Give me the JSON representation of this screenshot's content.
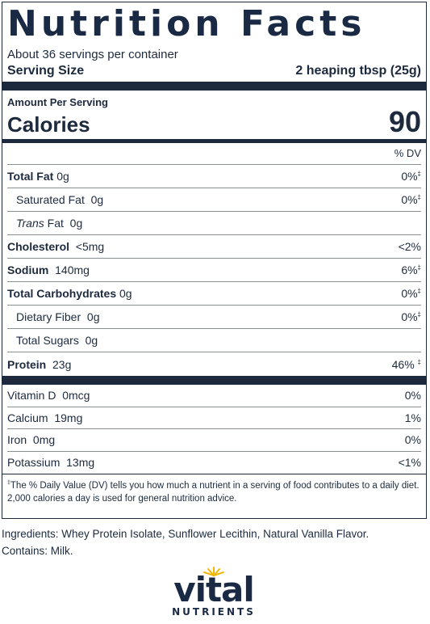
{
  "panel": {
    "title": "Nutrition Facts",
    "servings_per_container": "About 36 servings per container",
    "serving_size_label": "Serving Size",
    "serving_size_value": "2 heaping tbsp (25g)",
    "amount_per_serving": "Amount Per Serving",
    "calories_label": "Calories",
    "calories_value": "90",
    "dv_header": "% DV",
    "nutrients": [
      {
        "name": "Total Fat",
        "amount": "0g",
        "dv": "0%"
      },
      {
        "name": "Saturated Fat",
        "amount": "0g",
        "dv": "0%"
      },
      {
        "name": "Trans",
        "name_suffix": "Fat",
        "amount": "0g",
        "dv": ""
      },
      {
        "name": "Cholesterol",
        "amount": "<5mg",
        "dv": "<2%"
      },
      {
        "name": "Sodium",
        "amount": "140mg",
        "dv": "6%"
      },
      {
        "name": "Total Carbohydrates",
        "amount": "0g",
        "dv": "0%"
      },
      {
        "name": "Dietary Fiber",
        "amount": "0g",
        "dv": "0%"
      },
      {
        "name": "Total Sugars",
        "amount": "0g",
        "dv": ""
      },
      {
        "name": "Protein",
        "amount": "23g",
        "dv": "46%"
      }
    ],
    "vitamins": [
      {
        "name": "Vitamin D",
        "amount": "0mcg",
        "dv": "0%"
      },
      {
        "name": "Calcium",
        "amount": "19mg",
        "dv": "1%"
      },
      {
        "name": "Iron",
        "amount": "0mg",
        "dv": "0%"
      },
      {
        "name": "Potassium",
        "amount": "13mg",
        "dv": "<1%"
      }
    ],
    "footnote_mark": "‡",
    "footnote": "The % Daily Value (DV) tells you how much a nutrient in a serving of food contributes to a daily diet. 2,000 calories a day is used for general nutrition advice."
  },
  "ingredients": "Ingredients: Whey Protein Isolate, Sunflower Lecithin, Natural Vanilla Flavor.",
  "contains": "Contains: Milk.",
  "logo": {
    "word": "vital",
    "sub": "NUTRIENTS",
    "accent_color": "#f2b705",
    "brand_color": "#1a2a44"
  }
}
